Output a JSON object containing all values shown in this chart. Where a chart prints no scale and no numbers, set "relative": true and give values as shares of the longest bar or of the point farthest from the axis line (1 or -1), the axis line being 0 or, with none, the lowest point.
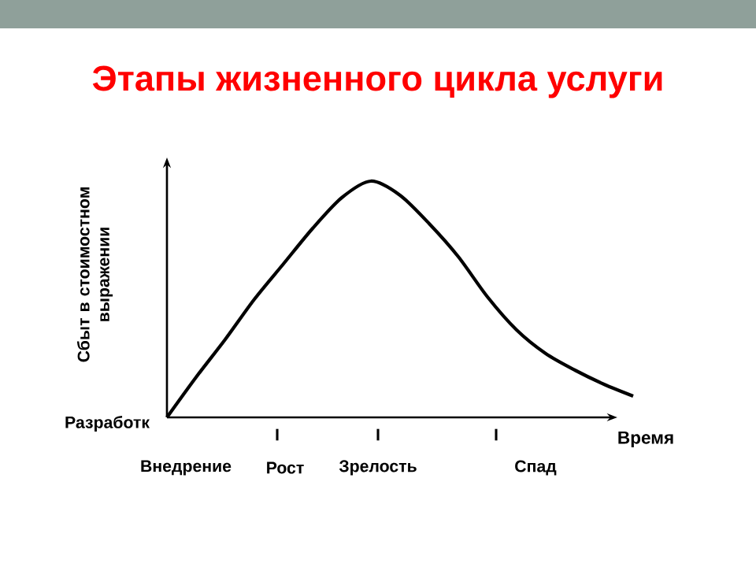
{
  "chart_data": {
    "type": "line",
    "title": "Этапы жизненного цикла услуги",
    "xlabel": "Время",
    "ylabel": "Сбыт в стоимостном выражении",
    "relative": true,
    "color": "#000000",
    "categories": [
      null,
      null,
      null,
      null,
      null,
      null,
      null,
      null,
      null,
      null,
      null,
      null,
      null,
      null,
      null,
      null,
      null
    ],
    "values": [
      0,
      0.17,
      0.33,
      0.5,
      0.65,
      0.8,
      0.93,
      1.0,
      0.94,
      0.82,
      0.68,
      0.51,
      0.37,
      0.27,
      0.2,
      0.14,
      0.09
    ],
    "annotations": [
      "Разработк",
      "I",
      "I",
      "I",
      "Внедрение",
      "Рост",
      "Зрелость",
      "Спад"
    ]
  }
}
